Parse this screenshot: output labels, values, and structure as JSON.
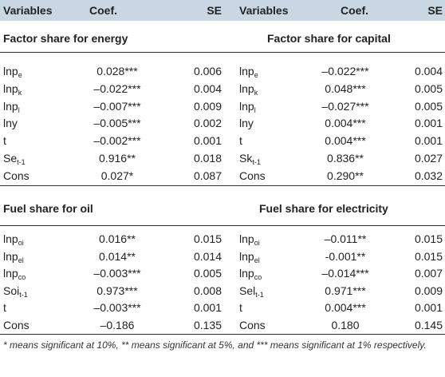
{
  "header": {
    "c1": "Variables",
    "c2": "Coef.",
    "c3": "SE",
    "c4": "Variables",
    "c5": "Coef.",
    "c6": "SE"
  },
  "panel_top": {
    "left_title": "Factor share for energy",
    "right_title": "Factor share for capital",
    "rows": [
      {
        "lv": "lnp",
        "lsub": "e",
        "lc": "0.028***",
        "ls": "0.006",
        "rv": "lnp",
        "rsub": "e",
        "rc": "–0.022***",
        "rs": "0.004"
      },
      {
        "lv": "lnp",
        "lsub": "k",
        "lc": "–0.022***",
        "ls": "0.004",
        "rv": "lnp",
        "rsub": "k",
        "rc": "0.048***",
        "rs": "0.005"
      },
      {
        "lv": "lnp",
        "lsub": "l",
        "lc": "–0.007***",
        "ls": "0.009",
        "rv": "lnp",
        "rsub": "l",
        "rc": "–0.027***",
        "rs": "0.005"
      },
      {
        "lv": "lny",
        "lsub": "",
        "lc": "–0.005***",
        "ls": "0.002",
        "rv": "lny",
        "rsub": "",
        "rc": "0.004***",
        "rs": "0.001"
      },
      {
        "lv": "t",
        "lsub": "",
        "lc": "–0.002***",
        "ls": "0.001",
        "rv": "t",
        "rsub": "",
        "rc": "0.004***",
        "rs": "0.001"
      },
      {
        "lv": "Se",
        "lsub": "t-1",
        "lc": "0.916**",
        "ls": "0.018",
        "rv": "Sk",
        "rsub": "t-1",
        "rc": "0.836**",
        "rs": "0.027"
      },
      {
        "lv": "Cons",
        "lsub": "",
        "lc": "0.027*",
        "ls": "0.087",
        "rv": "Cons",
        "rsub": "",
        "rc": "0.290**",
        "rs": "0.032"
      }
    ]
  },
  "panel_bottom": {
    "left_title": "Fuel share for oil",
    "right_title": "Fuel share for electricity",
    "rows": [
      {
        "lv": "lnp",
        "lsub": "oi",
        "lc": "0.016**",
        "ls": "0.015",
        "rv": "lnp",
        "rsub": "oi",
        "rc": "–0.011**",
        "rs": "0.015"
      },
      {
        "lv": "lnp",
        "lsub": "el",
        "lc": "0.014**",
        "ls": "0.014",
        "rv": "lnp",
        "rsub": "el",
        "rc": "-0.001**",
        "rs": "0.015"
      },
      {
        "lv": "lnp",
        "lsub": "co",
        "lc": "–0.003***",
        "ls": "0.005",
        "rv": "lnp",
        "rsub": "co",
        "rc": "–0.014***",
        "rs": "0.007"
      },
      {
        "lv": "Soi",
        "lsub": "t-1",
        "lc": "0.973***",
        "ls": "0.008",
        "rv": "Sel",
        "rsub": "t-1",
        "rc": "0.971***",
        "rs": "0.009"
      },
      {
        "lv": "t",
        "lsub": "",
        "lc": "–0.003***",
        "ls": "0.001",
        "rv": "t",
        "rsub": "",
        "rc": "0.004***",
        "rs": "0.001"
      },
      {
        "lv": "Cons",
        "lsub": "",
        "lc": "–0.186",
        "ls": "0.135",
        "rv": "Cons",
        "rsub": "",
        "rc": "0.180",
        "rs": "0.145"
      }
    ]
  },
  "note": "* means significant at 10%, ** means significant at 5%, and *** means significant at 1% respectively."
}
